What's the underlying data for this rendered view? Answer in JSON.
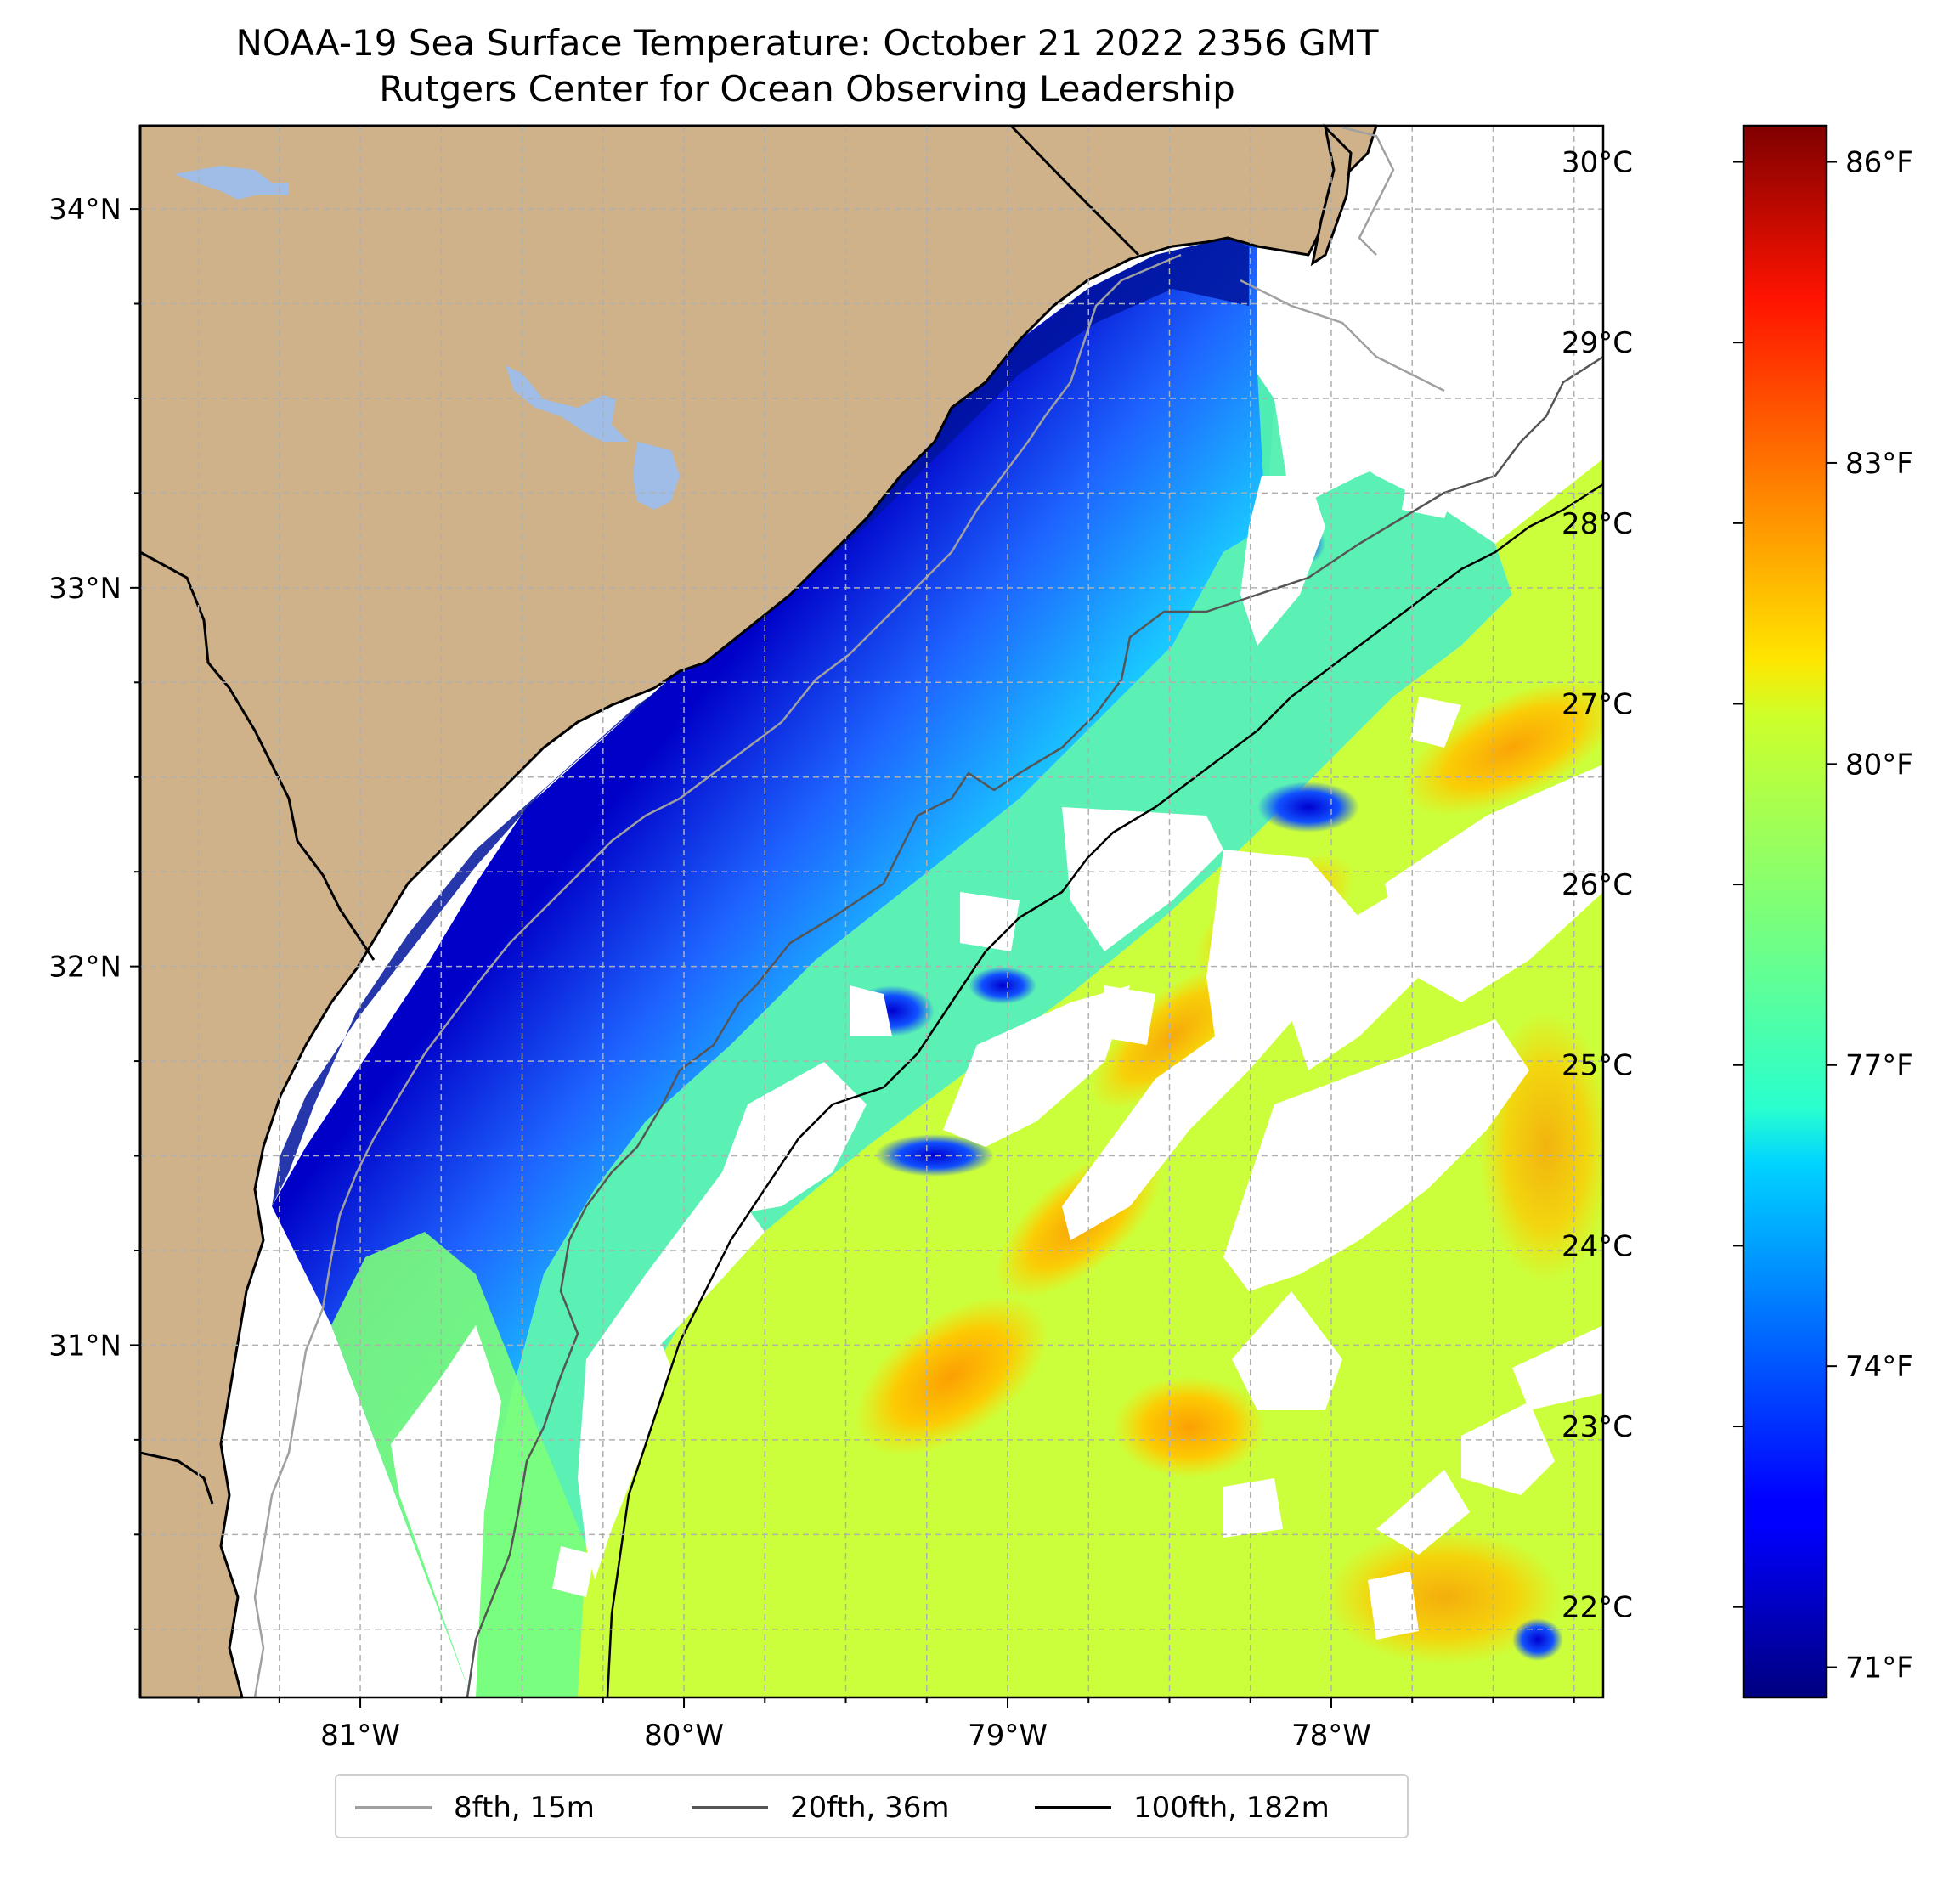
{
  "title": {
    "line1": "NOAA-19 Sea Surface Temperature: October 21 2022 2356 GMT",
    "line2": "Rutgers Center for Ocean Observing Leadership"
  },
  "map": {
    "extent": {
      "lon_min": -81.68,
      "lon_max": -77.16,
      "lat_min": 30.07,
      "lat_max": 34.22
    },
    "lat_ticks": [
      {
        "value": 34,
        "label": "34°N"
      },
      {
        "value": 33,
        "label": "33°N"
      },
      {
        "value": 32,
        "label": "32°N"
      },
      {
        "value": 31,
        "label": "31°N"
      }
    ],
    "lon_ticks": [
      {
        "value": -81,
        "label": "81°W"
      },
      {
        "value": -80,
        "label": "80°W"
      },
      {
        "value": -79,
        "label": "79°W"
      },
      {
        "value": -78,
        "label": "78°W"
      }
    ],
    "gridlines": "on (dashed)",
    "colors": {
      "land": "#cfb28a",
      "lake": "#9fbde6",
      "no_data": "#ffffff"
    }
  },
  "colorbar": {
    "celsius_ticks": [
      {
        "value": 30,
        "label": "30°C"
      },
      {
        "value": 29,
        "label": "29°C"
      },
      {
        "value": 28,
        "label": "28°C"
      },
      {
        "value": 27,
        "label": "27°C"
      },
      {
        "value": 26,
        "label": "26°C"
      },
      {
        "value": 25,
        "label": "25°C"
      },
      {
        "value": 24,
        "label": "24°C"
      },
      {
        "value": 23,
        "label": "23°C"
      },
      {
        "value": 22,
        "label": "22°C"
      }
    ],
    "fahrenheit_ticks": [
      {
        "value": 86,
        "label": "86°F"
      },
      {
        "value": 83,
        "label": "83°F"
      },
      {
        "value": 80,
        "label": "80°F"
      },
      {
        "value": 77,
        "label": "77°F"
      },
      {
        "value": 74,
        "label": "74°F"
      },
      {
        "value": 71,
        "label": "71°F"
      }
    ],
    "range_celsius": [
      21.5,
      30.2
    ],
    "colormap": "jet"
  },
  "legend": {
    "items": [
      {
        "label": "8fth, 15m",
        "color": "#a0a0a0"
      },
      {
        "label": "20fth, 36m",
        "color": "#555555"
      },
      {
        "label": "100fth, 182m",
        "color": "#000000"
      }
    ]
  }
}
